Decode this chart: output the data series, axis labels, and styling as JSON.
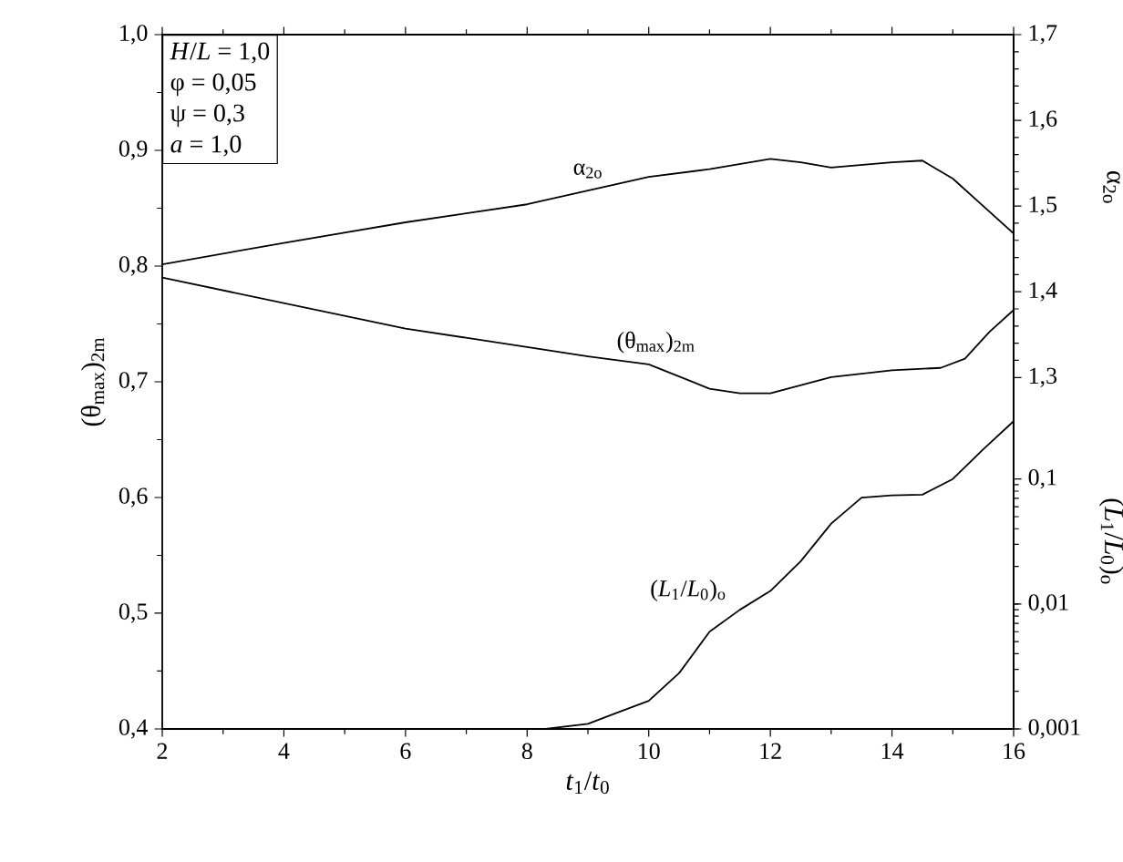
{
  "chart_data": {
    "type": "line",
    "xlabel": "*t*$_{1}$/*t*$_{0}$",
    "ylabel": "(θ$_{max}$)$_{2m}$",
    "y2label": "α$_{2o}$",
    "y3label": "(*L*$_{1}$/*L*$_{0}$)$_{o}$",
    "xlim": [
      2,
      16
    ],
    "xticks": [
      2,
      4,
      6,
      8,
      10,
      12,
      14,
      16
    ],
    "ylim": [
      0.4,
      1.0
    ],
    "yticks": [
      {
        "value": 0.4,
        "label": "0,4"
      },
      {
        "value": 0.5,
        "label": "0,5"
      },
      {
        "value": 0.6,
        "label": "0,6"
      },
      {
        "value": 0.7,
        "label": "0,7"
      },
      {
        "value": 0.8,
        "label": "0,8"
      },
      {
        "value": 0.9,
        "label": "0,9"
      },
      {
        "value": 1.0,
        "label": "1,0"
      }
    ],
    "y2lim": [
      0.89,
      1.7
    ],
    "y2ticks": [
      {
        "value": 1.3,
        "label": "1,3"
      },
      {
        "value": 1.4,
        "label": "1,4"
      },
      {
        "value": 1.5,
        "label": "1,5"
      },
      {
        "value": 1.6,
        "label": "1,6"
      },
      {
        "value": 1.7,
        "label": "1,7"
      }
    ],
    "y3lim": [
      0.001,
      360
    ],
    "y3ticks": [
      {
        "value": 0.001,
        "label": "0,001"
      },
      {
        "value": 0.01,
        "label": "0,01"
      },
      {
        "value": 0.1,
        "label": "0,1"
      }
    ],
    "log": "y3",
    "marker": "none",
    "line_style": "solid",
    "annotations": [
      "*H*/*L* = 1,0",
      "φ = 0,05",
      "ψ = 0,3",
      "*a* = 1,0"
    ],
    "series": [
      {
        "name": "α$_{2o}$",
        "color": "#000000",
        "axis": "y2",
        "x": [
          2,
          4,
          6,
          8,
          10,
          11,
          12,
          12.5,
          13,
          14,
          14.5,
          15,
          15.5,
          16
        ],
        "values": [
          1.432,
          1.457,
          1.481,
          1.502,
          1.534,
          1.543,
          1.555,
          1.551,
          1.545,
          1.551,
          1.553,
          1.532,
          1.5,
          1.468
        ]
      },
      {
        "name": "(θ$_{max}$)$_{2m}$",
        "color": "#000000",
        "axis": "y",
        "x": [
          2,
          4,
          6,
          8,
          9,
          10,
          11,
          11.5,
          12,
          13,
          14,
          14.8,
          15.2,
          15.6,
          16
        ],
        "values": [
          0.79,
          0.768,
          0.746,
          0.73,
          0.722,
          0.715,
          0.694,
          0.69,
          0.69,
          0.704,
          0.71,
          0.712,
          0.72,
          0.743,
          0.762
        ]
      },
      {
        "name": "(*L*$_{1}$/*L*$_{0}$)$_{o}$",
        "color": "#000000",
        "axis": "y3",
        "x": [
          8.3,
          9,
          9.5,
          10,
          10.5,
          11,
          11.5,
          12,
          12.5,
          13,
          13.5,
          14,
          14.5,
          15,
          15.5,
          16
        ],
        "values": [
          0.001,
          0.0011,
          0.00136,
          0.00168,
          0.0028,
          0.006,
          0.009,
          0.0127,
          0.022,
          0.044,
          0.071,
          0.074,
          0.075,
          0.1,
          0.173,
          0.29
        ]
      }
    ]
  }
}
